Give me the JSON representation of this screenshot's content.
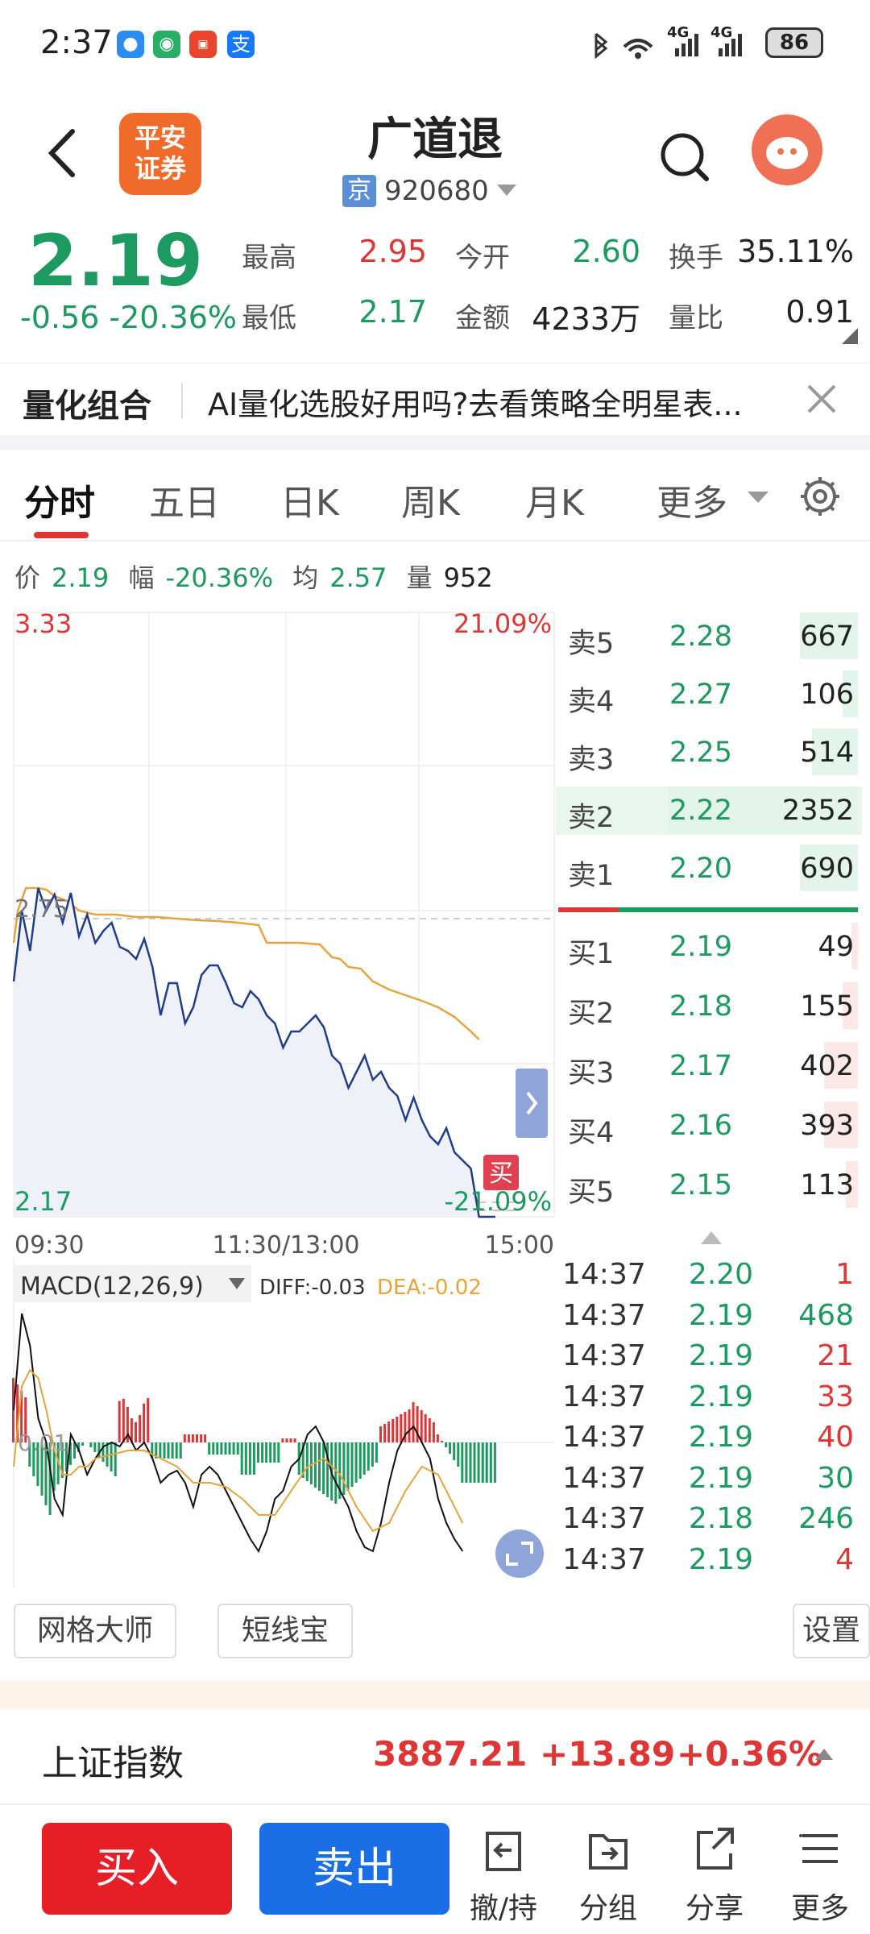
{
  "status_bar": {
    "time": "2:37",
    "battery": "86",
    "net1": "4G",
    "net2": "4G"
  },
  "header": {
    "title": "广道退",
    "market_tag": "京",
    "code": "920680",
    "logo_text": "平安证券"
  },
  "quote": {
    "price": "2.19",
    "change": "-0.56",
    "change_pct": "-20.36%",
    "high_label": "最高",
    "high": "2.95",
    "low_label": "最低",
    "low": "2.17",
    "open_label": "今开",
    "open": "2.60",
    "amount_label": "金额",
    "amount": "4233万",
    "turnover_label": "换手",
    "turnover": "35.11%",
    "volratio_label": "量比",
    "volratio": "0.91"
  },
  "banner": {
    "label": "量化组合",
    "text": "AI量化选股好用吗?去看策略全明星表..."
  },
  "tabs": {
    "t1": "分时",
    "t2": "五日",
    "t3": "日K",
    "t4": "周K",
    "t5": "月K",
    "t6": "更多"
  },
  "info": {
    "price_label": "价",
    "price": "2.19",
    "range_label": "幅",
    "range": "-20.36%",
    "avg_label": "均",
    "avg": "2.57",
    "vol_label": "量",
    "vol": "952"
  },
  "chart": {
    "top_price": "3.33",
    "top_pct": "21.09%",
    "mid_price": "2.75",
    "bottom_price": "2.17",
    "bottom_pct": "-21.09%",
    "t_start": "09:30",
    "t_mid": "11:30/13:00",
    "t_end": "15:00",
    "buy_marker": "买",
    "macd_label": "MACD(12,26,9)",
    "diff": "DIFF:-0.03",
    "dea": "DEA:-0.02",
    "macd_tick": "0.01",
    "colors": {
      "price_line": "#1f3d8a",
      "avg_line": "#e8a43a",
      "up": "#e03535",
      "down": "#1c9a5f"
    }
  },
  "order_book": {
    "asks": [
      {
        "label": "卖5",
        "price": "2.28",
        "vol": "667",
        "fill": 0.19
      },
      {
        "label": "卖4",
        "price": "2.27",
        "vol": "106",
        "fill": 0.05
      },
      {
        "label": "卖3",
        "price": "2.25",
        "vol": "514",
        "fill": 0.15
      },
      {
        "label": "卖2",
        "price": "2.22",
        "vol": "2352",
        "fill": 0.62
      },
      {
        "label": "卖1",
        "price": "2.20",
        "vol": "690",
        "fill": 0.19
      }
    ],
    "bids": [
      {
        "label": "买1",
        "price": "2.19",
        "vol": "49",
        "fill": 0.02
      },
      {
        "label": "买2",
        "price": "2.18",
        "vol": "155",
        "fill": 0.05
      },
      {
        "label": "买3",
        "price": "2.17",
        "vol": "402",
        "fill": 0.11
      },
      {
        "label": "买4",
        "price": "2.16",
        "vol": "393",
        "fill": 0.11
      },
      {
        "label": "买5",
        "price": "2.15",
        "vol": "113",
        "fill": 0.04
      }
    ]
  },
  "ticks": [
    {
      "time": "14:37",
      "price": "2.20",
      "vol": "1",
      "dir": "red"
    },
    {
      "time": "14:37",
      "price": "2.19",
      "vol": "468",
      "dir": "green"
    },
    {
      "time": "14:37",
      "price": "2.19",
      "vol": "21",
      "dir": "red"
    },
    {
      "time": "14:37",
      "price": "2.19",
      "vol": "33",
      "dir": "red"
    },
    {
      "time": "14:37",
      "price": "2.19",
      "vol": "40",
      "dir": "red"
    },
    {
      "time": "14:37",
      "price": "2.19",
      "vol": "30",
      "dir": "green"
    },
    {
      "time": "14:37",
      "price": "2.18",
      "vol": "246",
      "dir": "green"
    },
    {
      "time": "14:37",
      "price": "2.19",
      "vol": "4",
      "dir": "red"
    }
  ],
  "tools": {
    "grid": "网格大师",
    "short": "短线宝",
    "settings": "设置"
  },
  "index": {
    "name": "上证指数",
    "value": "3887.21",
    "change": "+13.89",
    "pct": "+0.36%"
  },
  "bottom": {
    "buy": "买入",
    "sell": "卖出",
    "cancel": "撤/持",
    "group": "分组",
    "share": "分享",
    "more": "更多"
  }
}
